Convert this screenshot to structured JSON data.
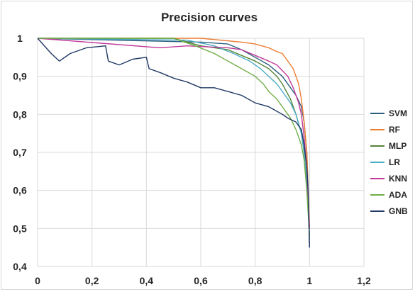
{
  "chart_data": {
    "type": "line",
    "title": "Precision curves",
    "xlabel": "",
    "ylabel": "",
    "xlim": [
      0,
      1.2
    ],
    "ylim": [
      0.4,
      1.0
    ],
    "x_ticks": [
      "0",
      "0,2",
      "0,4",
      "0,6",
      "0,8",
      "1",
      "1,2"
    ],
    "y_ticks": [
      "0,4",
      "0,5",
      "0,6",
      "0,7",
      "0,8",
      "0,9",
      "1"
    ],
    "grid": true,
    "legend_position": "right",
    "series": [
      {
        "name": "SVM",
        "color": "#2E5F7F",
        "points": [
          [
            0,
            1.0
          ],
          [
            0.6,
            0.99
          ],
          [
            0.7,
            0.985
          ],
          [
            0.75,
            0.97
          ],
          [
            0.8,
            0.95
          ],
          [
            0.85,
            0.93
          ],
          [
            0.9,
            0.9
          ],
          [
            0.93,
            0.87
          ],
          [
            0.95,
            0.85
          ],
          [
            0.97,
            0.82
          ],
          [
            0.98,
            0.78
          ],
          [
            0.99,
            0.7
          ],
          [
            0.995,
            0.6
          ],
          [
            1.0,
            0.45
          ]
        ]
      },
      {
        "name": "RF",
        "color": "#ED7D31",
        "points": [
          [
            0,
            1.0
          ],
          [
            0.6,
            1.0
          ],
          [
            0.75,
            0.99
          ],
          [
            0.8,
            0.985
          ],
          [
            0.85,
            0.975
          ],
          [
            0.88,
            0.965
          ],
          [
            0.9,
            0.96
          ],
          [
            0.92,
            0.94
          ],
          [
            0.94,
            0.92
          ],
          [
            0.96,
            0.88
          ],
          [
            0.97,
            0.84
          ],
          [
            0.98,
            0.78
          ],
          [
            0.99,
            0.7
          ],
          [
            0.995,
            0.6
          ],
          [
            1.0,
            0.5
          ]
        ]
      },
      {
        "name": "MLP",
        "color": "#548235",
        "points": [
          [
            0,
            1.0
          ],
          [
            0.5,
            1.0
          ],
          [
            0.6,
            0.98
          ],
          [
            0.7,
            0.97
          ],
          [
            0.75,
            0.955
          ],
          [
            0.8,
            0.94
          ],
          [
            0.85,
            0.92
          ],
          [
            0.88,
            0.9
          ],
          [
            0.9,
            0.88
          ],
          [
            0.93,
            0.84
          ],
          [
            0.95,
            0.8
          ],
          [
            0.97,
            0.75
          ],
          [
            0.98,
            0.7
          ],
          [
            0.99,
            0.62
          ],
          [
            1.0,
            0.48
          ]
        ]
      },
      {
        "name": "LR",
        "color": "#4BACC6",
        "points": [
          [
            0,
            1.0
          ],
          [
            0.55,
            0.995
          ],
          [
            0.65,
            0.98
          ],
          [
            0.72,
            0.96
          ],
          [
            0.78,
            0.94
          ],
          [
            0.82,
            0.92
          ],
          [
            0.85,
            0.9
          ],
          [
            0.88,
            0.88
          ],
          [
            0.9,
            0.86
          ],
          [
            0.93,
            0.83
          ],
          [
            0.95,
            0.8
          ],
          [
            0.97,
            0.75
          ],
          [
            0.98,
            0.7
          ],
          [
            0.99,
            0.62
          ],
          [
            1.0,
            0.48
          ]
        ]
      },
      {
        "name": "KNN",
        "color": "#C0399A",
        "points": [
          [
            0,
            1.0
          ],
          [
            0.45,
            0.975
          ],
          [
            0.55,
            0.98
          ],
          [
            0.7,
            0.975
          ],
          [
            0.75,
            0.97
          ],
          [
            0.8,
            0.955
          ],
          [
            0.85,
            0.94
          ],
          [
            0.88,
            0.93
          ],
          [
            0.9,
            0.915
          ],
          [
            0.92,
            0.9
          ],
          [
            0.94,
            0.87
          ],
          [
            0.96,
            0.83
          ],
          [
            0.97,
            0.8
          ],
          [
            0.98,
            0.74
          ],
          [
            0.99,
            0.66
          ],
          [
            1.0,
            0.5
          ]
        ]
      },
      {
        "name": "ADA",
        "color": "#70AD47",
        "points": [
          [
            0,
            1.0
          ],
          [
            0.5,
            1.0
          ],
          [
            0.58,
            0.98
          ],
          [
            0.65,
            0.96
          ],
          [
            0.7,
            0.94
          ],
          [
            0.75,
            0.92
          ],
          [
            0.8,
            0.9
          ],
          [
            0.83,
            0.88
          ],
          [
            0.85,
            0.86
          ],
          [
            0.88,
            0.84
          ],
          [
            0.9,
            0.82
          ],
          [
            0.93,
            0.79
          ],
          [
            0.95,
            0.76
          ],
          [
            0.97,
            0.72
          ],
          [
            0.98,
            0.68
          ],
          [
            0.99,
            0.6
          ],
          [
            1.0,
            0.48
          ]
        ]
      },
      {
        "name": "GNB",
        "color": "#203864",
        "points": [
          [
            0,
            1.0
          ],
          [
            0.05,
            0.96
          ],
          [
            0.08,
            0.94
          ],
          [
            0.12,
            0.96
          ],
          [
            0.18,
            0.975
          ],
          [
            0.25,
            0.98
          ],
          [
            0.26,
            0.94
          ],
          [
            0.3,
            0.93
          ],
          [
            0.35,
            0.945
          ],
          [
            0.4,
            0.95
          ],
          [
            0.41,
            0.92
          ],
          [
            0.45,
            0.91
          ],
          [
            0.5,
            0.895
          ],
          [
            0.55,
            0.885
          ],
          [
            0.6,
            0.87
          ],
          [
            0.65,
            0.87
          ],
          [
            0.7,
            0.86
          ],
          [
            0.75,
            0.85
          ],
          [
            0.8,
            0.83
          ],
          [
            0.85,
            0.82
          ],
          [
            0.9,
            0.8
          ],
          [
            0.92,
            0.79
          ],
          [
            0.95,
            0.78
          ],
          [
            0.97,
            0.76
          ],
          [
            0.98,
            0.72
          ],
          [
            0.99,
            0.66
          ],
          [
            0.995,
            0.6
          ],
          [
            1.0,
            0.45
          ]
        ]
      }
    ]
  }
}
